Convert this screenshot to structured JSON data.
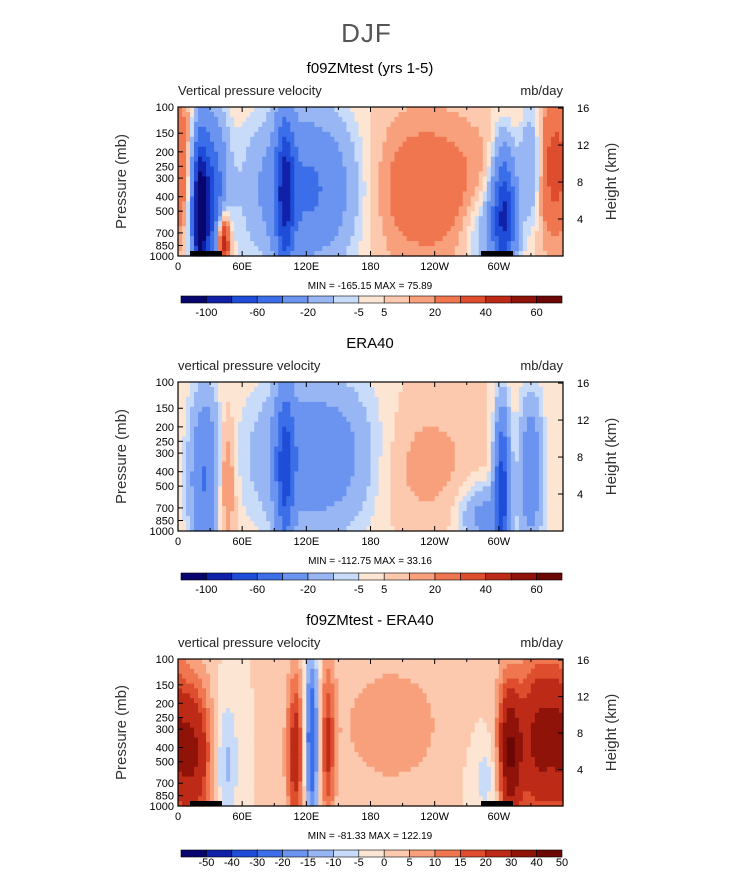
{
  "title": "DJF",
  "chart_data": [
    {
      "type": "heatmap",
      "title": "f09ZMtest (yrs 1-5)",
      "left_label": "Vertical pressure velocity",
      "units": "mb/day",
      "ylabel": "Pressure (mb)",
      "y2label": "Height (km)",
      "pressure_ticks": [
        "100",
        "150",
        "200",
        "250",
        "300",
        "400",
        "500",
        "700",
        "850",
        "1000"
      ],
      "height_ticks": [
        "4",
        "8",
        "12",
        "16"
      ],
      "x_ticks": [
        "0",
        "60E",
        "120E",
        "180",
        "120W",
        "60W"
      ],
      "stats": "MIN = -165.15   MAX =  75.89",
      "colorbar_labels": [
        "-100",
        "-60",
        "-20",
        "-5",
        "5",
        "20",
        "40",
        "60"
      ],
      "colors": [
        "#08066e",
        "#1021a8",
        "#1f4dd8",
        "#3b6ee8",
        "#6a94ef",
        "#98b6f4",
        "#c8dbf9",
        "#fde5d3",
        "#fcc9ae",
        "#f8a07c",
        "#f07650",
        "#de4e2e",
        "#bd2a17",
        "#8f1309",
        "#6b0705"
      ]
    },
    {
      "type": "heatmap",
      "title": "ERA40",
      "left_label": "vertical pressure velocity",
      "units": "mb/day",
      "ylabel": "Pressure (mb)",
      "y2label": "Height (km)",
      "pressure_ticks": [
        "100",
        "150",
        "200",
        "250",
        "300",
        "400",
        "500",
        "700",
        "850",
        "1000"
      ],
      "height_ticks": [
        "4",
        "8",
        "12",
        "16"
      ],
      "x_ticks": [
        "0",
        "60E",
        "120E",
        "180",
        "120W",
        "60W"
      ],
      "stats": "MIN = -112.75   MAX =  33.16",
      "colorbar_labels": [
        "-100",
        "-60",
        "-20",
        "-5",
        "5",
        "20",
        "40",
        "60"
      ],
      "colors": [
        "#08066e",
        "#1021a8",
        "#1f4dd8",
        "#3b6ee8",
        "#6a94ef",
        "#98b6f4",
        "#c8dbf9",
        "#fde5d3",
        "#fcc9ae",
        "#f8a07c",
        "#f07650",
        "#de4e2e",
        "#bd2a17",
        "#8f1309",
        "#6b0705"
      ]
    },
    {
      "type": "heatmap",
      "title": "f09ZMtest - ERA40",
      "left_label": "vertical pressure velocity",
      "units": "mb/day",
      "ylabel": "Pressure (mb)",
      "y2label": "Height (km)",
      "pressure_ticks": [
        "100",
        "150",
        "200",
        "250",
        "300",
        "400",
        "500",
        "700",
        "850",
        "1000"
      ],
      "height_ticks": [
        "4",
        "8",
        "12",
        "16"
      ],
      "x_ticks": [
        "0",
        "60E",
        "120E",
        "180",
        "120W",
        "60W"
      ],
      "stats": "MIN = -81.33   MAX = 122.19",
      "colorbar_labels": [
        "-50",
        "-40",
        "-30",
        "-20",
        "-15",
        "-10",
        "-5",
        "0",
        "5",
        "10",
        "15",
        "20",
        "30",
        "40",
        "50"
      ],
      "colors": [
        "#08066e",
        "#1021a8",
        "#1f4dd8",
        "#3b6ee8",
        "#6a94ef",
        "#98b6f4",
        "#c8dbf9",
        "#fde5d3",
        "#fcc9ae",
        "#f8a07c",
        "#f07650",
        "#de4e2e",
        "#bd2a17",
        "#8f1309",
        "#6b0705"
      ]
    }
  ]
}
